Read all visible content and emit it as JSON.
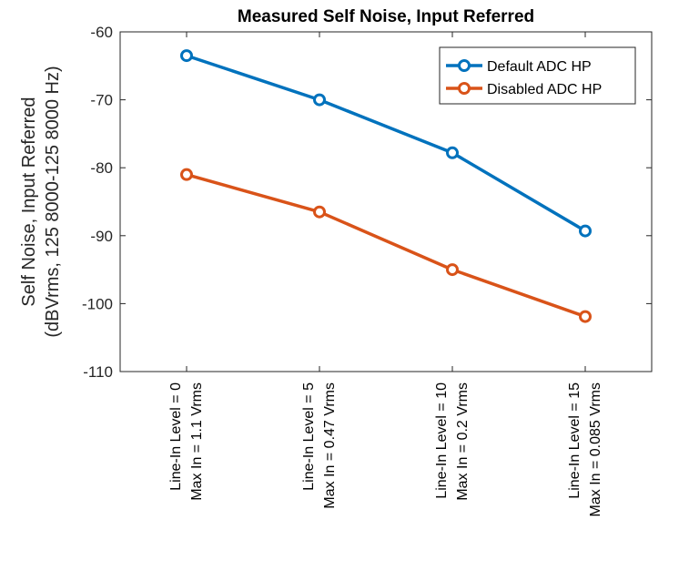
{
  "chart_data": {
    "type": "line",
    "title": "Measured Self Noise, Input Referred",
    "ylabel": [
      "Self Noise, Input Referred",
      "(dBVrms, 125  8000-125  8000 Hz)"
    ],
    "xlabel": "",
    "ylim": [
      -110,
      -60
    ],
    "yticks": [
      -60,
      -70,
      -80,
      -90,
      -100,
      -110
    ],
    "categories": [
      [
        "Line-In Level = 0",
        "Max In = 1.1 Vrms"
      ],
      [
        "Line-In Level = 5",
        "Max In = 0.47 Vrms"
      ],
      [
        "Line-In Level = 10",
        "Max In = 0.2 Vrms"
      ],
      [
        "Line-In Level = 15",
        "Max In = 0.085 Vrms"
      ]
    ],
    "series": [
      {
        "name": "Default ADC HP",
        "color": "#0072bd",
        "values": [
          -63.5,
          -70.0,
          -77.8,
          -89.3
        ]
      },
      {
        "name": "Disabled ADC HP",
        "color": "#d95319",
        "values": [
          -81.0,
          -86.5,
          -95.0,
          -101.9
        ]
      }
    ],
    "legend": "top-right",
    "grid": false
  }
}
